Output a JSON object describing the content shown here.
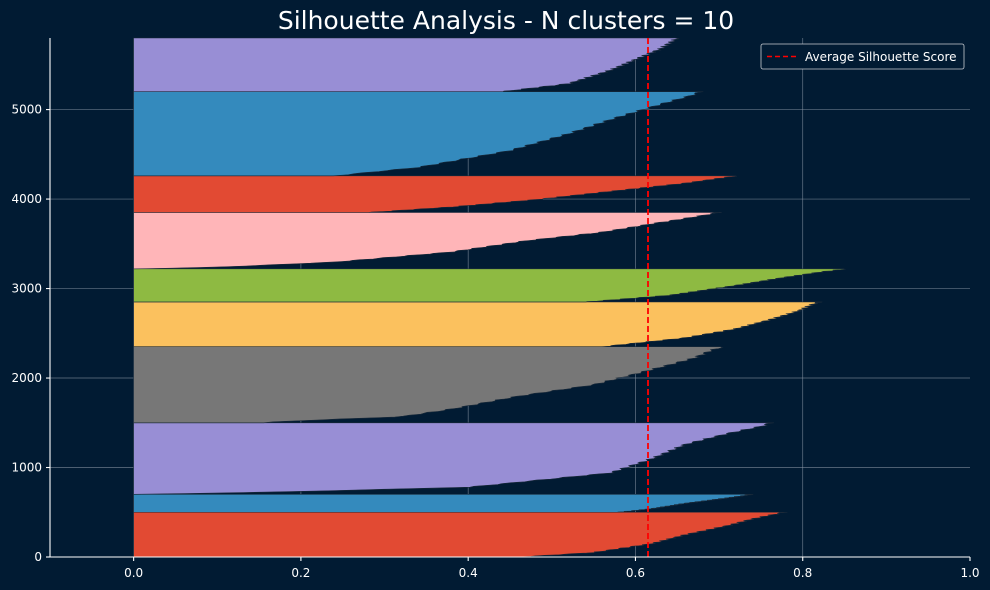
{
  "chart_data": {
    "type": "area",
    "title": "Silhouette Analysis - N clusters = 10",
    "xlabel": "",
    "ylabel": "",
    "xlim": [
      -0.1,
      1.0
    ],
    "ylim": [
      0,
      5800
    ],
    "x_ticks": [
      0.0,
      0.2,
      0.4,
      0.6,
      0.8,
      1.0
    ],
    "x_tick_labels": [
      "0.0",
      "0.2",
      "0.4",
      "0.6",
      "0.8",
      "1.0"
    ],
    "y_ticks": [
      0,
      1000,
      2000,
      3000,
      4000,
      5000
    ],
    "y_tick_labels": [
      "0",
      "1000",
      "2000",
      "3000",
      "4000",
      "5000"
    ],
    "grid": true,
    "legend_position": "top-right",
    "average_line": {
      "x": 0.615,
      "label": "Average Silhouette Score",
      "color": "#ff0000"
    },
    "clusters": [
      {
        "y_start": 0,
        "y_end": 500,
        "color": "#e24a33",
        "profile": [
          [
            0,
            0.46
          ],
          [
            0.1,
            0.55
          ],
          [
            0.3,
            0.62
          ],
          [
            0.5,
            0.66
          ],
          [
            0.7,
            0.71
          ],
          [
            0.85,
            0.74
          ],
          [
            0.95,
            0.765
          ],
          [
            1,
            0.778
          ]
        ]
      },
      {
        "y_start": 500,
        "y_end": 700,
        "color": "#348abd",
        "profile": [
          [
            0,
            0.58
          ],
          [
            0.2,
            0.62
          ],
          [
            0.5,
            0.66
          ],
          [
            0.8,
            0.71
          ],
          [
            1,
            0.74
          ]
        ]
      },
      {
        "y_start": 700,
        "y_end": 1500,
        "color": "#988ed5",
        "profile": [
          [
            0,
            0.0
          ],
          [
            0.03,
            0.16
          ],
          [
            0.1,
            0.4
          ],
          [
            0.3,
            0.57
          ],
          [
            0.5,
            0.62
          ],
          [
            0.7,
            0.66
          ],
          [
            0.85,
            0.71
          ],
          [
            0.95,
            0.75
          ],
          [
            1,
            0.762
          ]
        ]
      },
      {
        "y_start": 1500,
        "y_end": 2350,
        "color": "#777777",
        "profile": [
          [
            0,
            0.155
          ],
          [
            0.02,
            0.18
          ],
          [
            0.08,
            0.32
          ],
          [
            0.18,
            0.38
          ],
          [
            0.35,
            0.46
          ],
          [
            0.5,
            0.55
          ],
          [
            0.7,
            0.62
          ],
          [
            0.85,
            0.67
          ],
          [
            0.95,
            0.69
          ],
          [
            1,
            0.705
          ]
        ]
      },
      {
        "y_start": 2350,
        "y_end": 2850,
        "color": "#fbc15e",
        "profile": [
          [
            0,
            0.56
          ],
          [
            0.2,
            0.66
          ],
          [
            0.4,
            0.72
          ],
          [
            0.6,
            0.76
          ],
          [
            0.8,
            0.795
          ],
          [
            0.95,
            0.812
          ],
          [
            1,
            0.82
          ]
        ]
      },
      {
        "y_start": 2850,
        "y_end": 3220,
        "color": "#8eba42",
        "profile": [
          [
            0,
            0.54
          ],
          [
            0.2,
            0.64
          ],
          [
            0.5,
            0.72
          ],
          [
            0.75,
            0.78
          ],
          [
            0.9,
            0.82
          ],
          [
            1,
            0.852
          ]
        ]
      },
      {
        "y_start": 3220,
        "y_end": 3850,
        "color": "#ffb5b8",
        "profile": [
          [
            0,
            0.0
          ],
          [
            0.03,
            0.1
          ],
          [
            0.12,
            0.24
          ],
          [
            0.3,
            0.38
          ],
          [
            0.5,
            0.47
          ],
          [
            0.65,
            0.56
          ],
          [
            0.8,
            0.62
          ],
          [
            0.92,
            0.67
          ],
          [
            1,
            0.7
          ]
        ]
      },
      {
        "y_start": 3850,
        "y_end": 4260,
        "color": "#e24a33",
        "profile": [
          [
            0,
            0.28
          ],
          [
            0.15,
            0.38
          ],
          [
            0.35,
            0.48
          ],
          [
            0.6,
            0.58
          ],
          [
            0.8,
            0.66
          ],
          [
            0.93,
            0.7
          ],
          [
            1,
            0.722
          ]
        ]
      },
      {
        "y_start": 4260,
        "y_end": 5200,
        "color": "#348abd",
        "profile": [
          [
            0,
            0.24
          ],
          [
            0.1,
            0.34
          ],
          [
            0.3,
            0.45
          ],
          [
            0.5,
            0.52
          ],
          [
            0.7,
            0.58
          ],
          [
            0.85,
            0.63
          ],
          [
            0.95,
            0.665
          ],
          [
            1,
            0.678
          ]
        ]
      },
      {
        "y_start": 5200,
        "y_end": 5800,
        "color": "#988ed5",
        "profile": [
          [
            0,
            0.44
          ],
          [
            0.15,
            0.52
          ],
          [
            0.4,
            0.57
          ],
          [
            0.6,
            0.6
          ],
          [
            0.8,
            0.63
          ],
          [
            0.95,
            0.645
          ],
          [
            1,
            0.65
          ]
        ]
      }
    ]
  }
}
